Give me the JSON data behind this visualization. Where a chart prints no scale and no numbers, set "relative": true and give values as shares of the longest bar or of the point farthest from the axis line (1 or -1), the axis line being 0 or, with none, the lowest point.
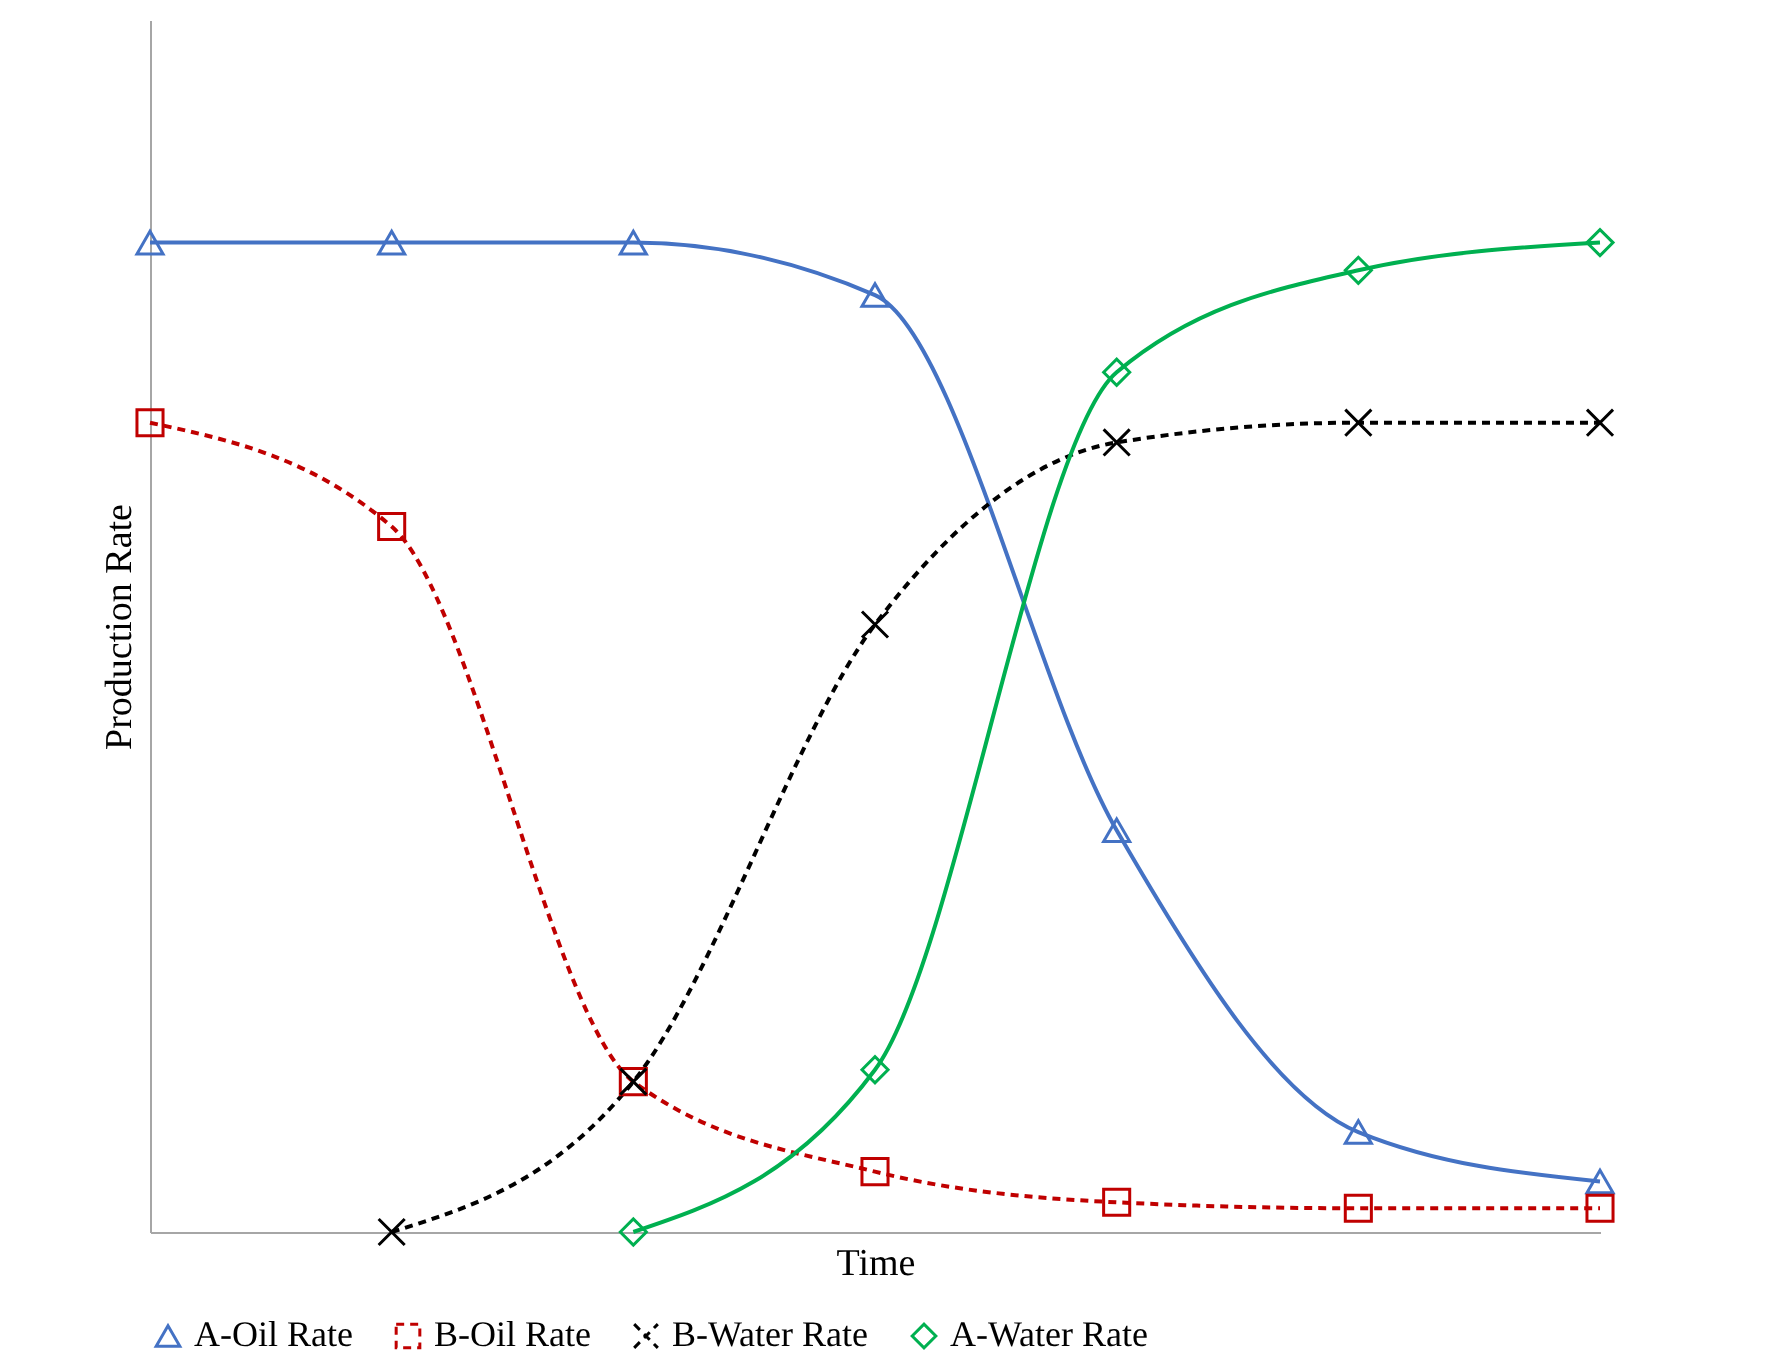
{
  "chart_data": {
    "type": "line",
    "relative": true,
    "xlabel": "Time",
    "ylabel": "Production Rate",
    "categories": [
      null,
      null,
      null,
      null,
      null,
      null,
      null
    ],
    "legend": "bottom",
    "series": [
      {
        "name": "A-Oil Rate",
        "color": "#4472c4",
        "marker": "triangle",
        "line_style": "solid",
        "values": [
          1,
          1,
          1,
          0.947,
          0.406,
          0.101,
          0.051
        ]
      },
      {
        "name": "B-Oil Rate",
        "color": "#c00000",
        "marker": "square",
        "line_style": "dashed",
        "values": [
          0.818,
          0.713,
          0.152,
          0.061,
          0.03,
          0.024,
          0.024
        ]
      },
      {
        "name": "B-Water Rate",
        "color": "#000000",
        "marker": "cross",
        "line_style": "dashed",
        "values": [
          null,
          0,
          0.152,
          0.614,
          0.798,
          0.818,
          0.818
        ]
      },
      {
        "name": "A-Water Rate",
        "color": "#00b050",
        "marker": "diamond",
        "line_style": "solid",
        "values": [
          null,
          null,
          0,
          0.164,
          0.869,
          0.972,
          1
        ]
      }
    ]
  }
}
